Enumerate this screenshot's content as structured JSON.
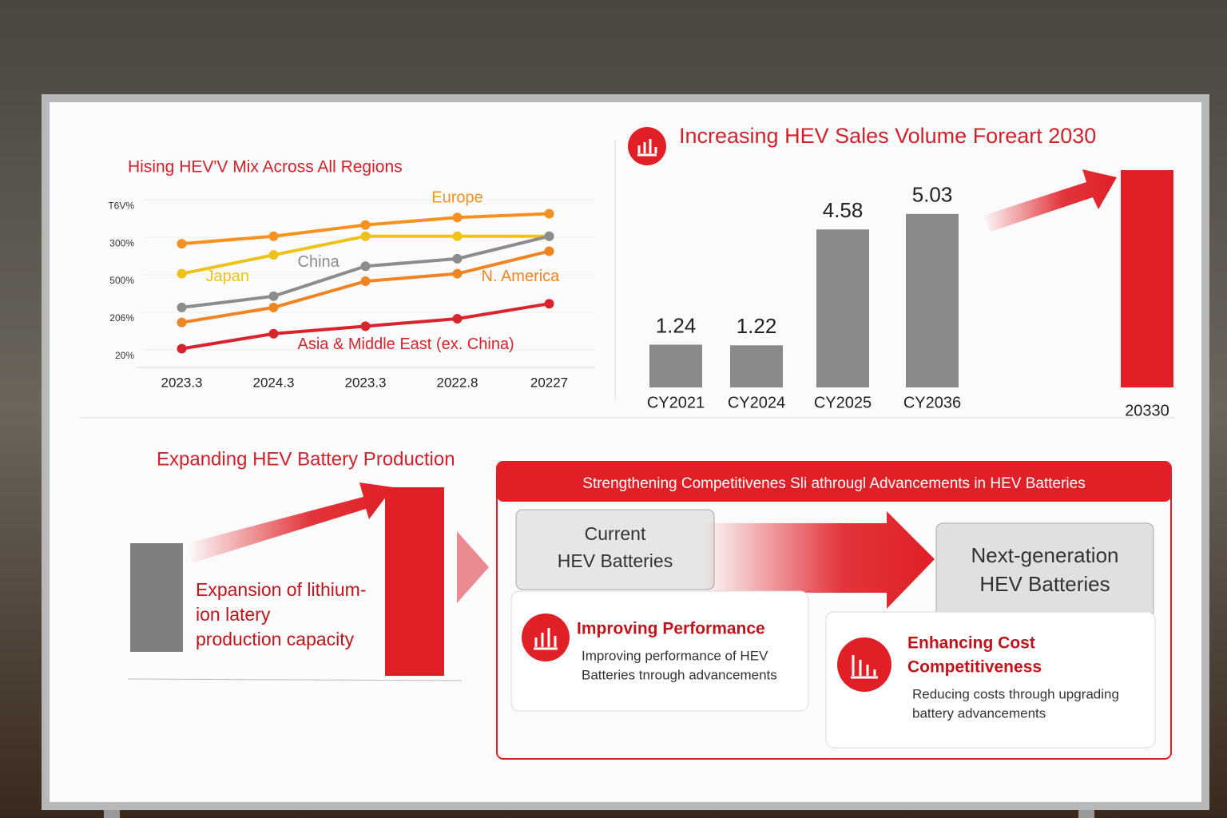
{
  "chart_data": [
    {
      "type": "line",
      "title": "Hising HEV'V Mix Across All Regions",
      "categories": [
        "2023.3",
        "2024.3",
        "2023.3",
        "2022.8",
        "20227"
      ],
      "ylim": [
        -0.3,
        4.6
      ],
      "yticks": [
        {
          "value": 0,
          "label": "20%"
        },
        {
          "value": 1,
          "label": "206%"
        },
        {
          "value": 2,
          "label": "500%"
        },
        {
          "value": 3,
          "label": "300%"
        },
        {
          "value": 4,
          "label": "T6V%"
        }
      ],
      "grid": true,
      "series": [
        {
          "name": "Europe",
          "color": "#f39220",
          "values": [
            3.0,
            3.2,
            3.5,
            3.7,
            3.8
          ]
        },
        {
          "name": "Japan",
          "color": "#efc21a",
          "values": [
            2.2,
            2.7,
            3.2,
            3.2,
            3.2
          ]
        },
        {
          "name": "China",
          "color": "#8c8c8c",
          "values": [
            1.3,
            1.6,
            2.4,
            2.6,
            3.2
          ]
        },
        {
          "name": "N. America",
          "color": "#ef8422",
          "values": [
            0.9,
            1.3,
            2.0,
            2.2,
            2.8
          ]
        },
        {
          "name": "Asia & Middle East (ex. China)",
          "color": "#d7242d",
          "values": [
            0.2,
            0.6,
            0.8,
            1.0,
            1.4
          ]
        }
      ]
    },
    {
      "type": "bar",
      "title": "Increasing HEV Sales Volume Foreart 2030",
      "categories": [
        "CY2021",
        "CY2024",
        "CY2025",
        "CY2036",
        "20330"
      ],
      "values": [
        1.24,
        1.22,
        4.58,
        5.03,
        6.3
      ],
      "colors": [
        "#8a8a8a",
        "#8a8a8a",
        "#8a8a8a",
        "#8a8a8a",
        "#e01f26"
      ]
    }
  ],
  "production": {
    "title": "Expanding HEV Battery Production",
    "text": [
      "Expansion of lithium-",
      "ion latery",
      "production capacity"
    ]
  },
  "competitiveness": {
    "header": "Strengthening Competitivenes Sli athrougl Advancements in HEV Batteries",
    "current": [
      "Current",
      "HEV Batteries"
    ],
    "next": [
      "Next-generation",
      "HEV Batteries"
    ],
    "cards": [
      {
        "title": [
          "Improving Performance"
        ],
        "text": [
          "Improving performance of HEV",
          "Batteries tnrough advancements"
        ]
      },
      {
        "title": [
          "Enhancing Cost",
          "Competitiveness"
        ],
        "text": [
          "Reducing costs through upgrading",
          "battery advancements"
        ]
      }
    ]
  }
}
